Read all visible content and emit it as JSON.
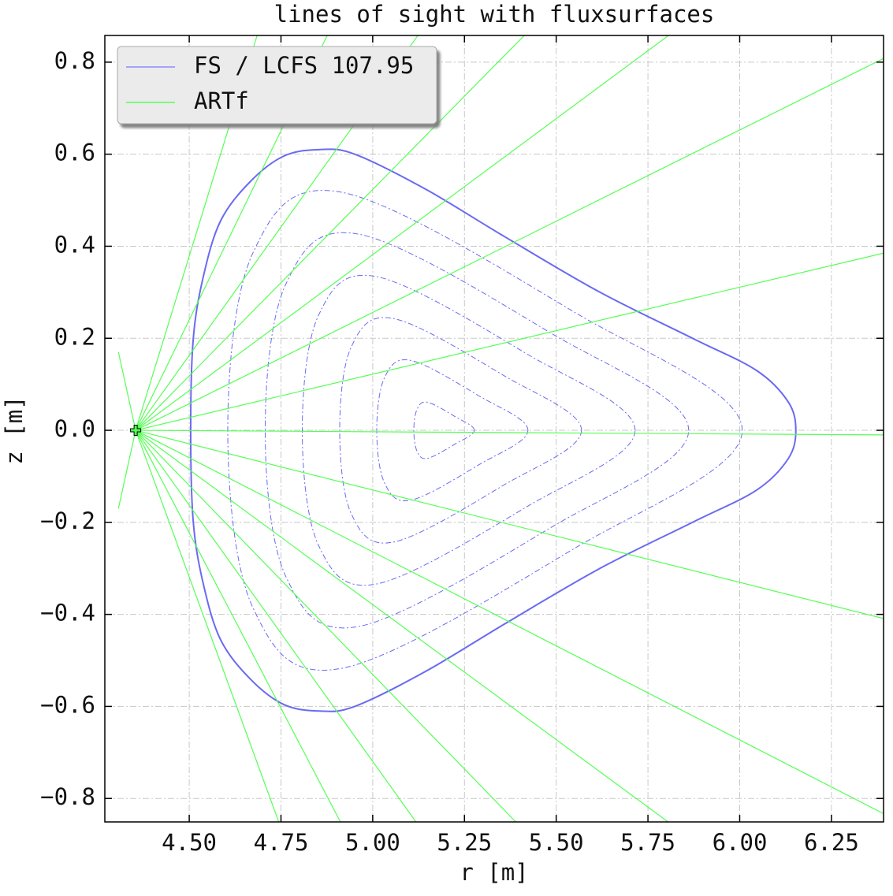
{
  "chart_data": {
    "type": "line",
    "title": "lines of sight with fluxsurfaces",
    "xlabel": "r [m]",
    "ylabel": "z [m]",
    "xlim": [
      4.27,
      6.392
    ],
    "ylim": [
      -0.851,
      0.858
    ],
    "xticks": [
      {
        "value": 4.5,
        "label": "4.50"
      },
      {
        "value": 4.75,
        "label": "4.75"
      },
      {
        "value": 5.0,
        "label": "5.00"
      },
      {
        "value": 5.25,
        "label": "5.25"
      },
      {
        "value": 5.5,
        "label": "5.50"
      },
      {
        "value": 5.75,
        "label": "5.75"
      },
      {
        "value": 6.0,
        "label": "6.00"
      },
      {
        "value": 6.25,
        "label": "6.25"
      }
    ],
    "yticks": [
      {
        "value": -0.8,
        "label": "−0.8"
      },
      {
        "value": -0.6,
        "label": "−0.6"
      },
      {
        "value": -0.4,
        "label": "−0.4"
      },
      {
        "value": -0.2,
        "label": "−0.2"
      },
      {
        "value": 0,
        "label": "0.0"
      },
      {
        "value": 0.2,
        "label": "0.2"
      },
      {
        "value": 0.4,
        "label": "0.4"
      },
      {
        "value": 0.6,
        "label": "0.6"
      },
      {
        "value": 0.8,
        "label": "0.8"
      }
    ],
    "grid": true,
    "legend": "upper left",
    "series": [
      {
        "name": "FS / LCFS 107.95",
        "color": "#6a6af2",
        "legend_color": "#8c8cff",
        "closed": true,
        "lines": [
          {
            "style": "solid",
            "x": [
              6.153,
              6.132,
              6.046,
              5.874,
              5.617,
              5.359,
              5.144,
              4.951,
              4.854,
              4.758,
              4.667,
              4.586,
              4.539,
              4.511,
              4.504,
              4.511,
              4.539,
              4.586,
              4.667,
              4.758,
              4.854,
              4.951,
              5.144,
              5.359,
              5.617,
              5.874,
              6.046,
              6.132
            ],
            "y": [
              0,
              0.062,
              0.13,
              0.199,
              0.301,
              0.421,
              0.524,
              0.6,
              0.61,
              0.596,
              0.541,
              0.456,
              0.336,
              0.199,
              0,
              -0.199,
              -0.336,
              -0.456,
              -0.541,
              -0.596,
              -0.61,
              -0.6,
              -0.524,
              -0.421,
              -0.301,
              -0.199,
              -0.13,
              -0.062
            ]
          },
          {
            "style": "dashdot",
            "x": [
              6.007,
              5.551,
              4.917,
              4.675,
              4.605,
              4.675,
              4.917,
              5.551
            ],
            "y": [
              0,
              0.256,
              0.517,
              0.388,
              0,
              -0.388,
              -0.517,
              -0.256
            ]
          },
          {
            "style": "dashdot",
            "x": [
              5.861,
              5.486,
              4.963,
              4.764,
              4.707,
              4.764,
              4.963,
              5.486
            ],
            "y": [
              0,
              0.211,
              0.426,
              0.319,
              0,
              -0.319,
              -0.426,
              -0.211
            ]
          },
          {
            "style": "dashdot",
            "x": [
              5.715,
              5.42,
              5.01,
              4.853,
              4.808,
              4.853,
              5.01,
              5.42
            ],
            "y": [
              0,
              0.166,
              0.334,
              0.251,
              0,
              -0.251,
              -0.334,
              -0.166
            ]
          },
          {
            "style": "dashdot",
            "x": [
              5.569,
              5.355,
              5.056,
              4.942,
              4.91,
              4.942,
              5.056,
              5.355
            ],
            "y": [
              0,
              0.12,
              0.243,
              0.182,
              0,
              -0.182,
              -0.243,
              -0.12
            ]
          },
          {
            "style": "dashdot",
            "x": [
              5.423,
              5.289,
              5.103,
              5.032,
              5.011,
              5.032,
              5.103,
              5.289
            ],
            "y": [
              0,
              0.075,
              0.152,
              0.114,
              0,
              -0.114,
              -0.152,
              -0.075
            ]
          },
          {
            "style": "dashdot",
            "x": [
              5.277,
              5.224,
              5.149,
              5.121,
              5.112,
              5.121,
              5.149,
              5.224
            ],
            "y": [
              0,
              0.03,
              0.061,
              0.046,
              0,
              -0.046,
              -0.061,
              -0.03
            ]
          }
        ]
      },
      {
        "name": "ARTf",
        "color": "#55ff55",
        "legend_color": "#55ff55",
        "closed": false,
        "marker": "+",
        "lines": [
          {
            "style": "solid",
            "x": [
              4.354,
              4.685
            ],
            "y": [
              0,
              0.858
            ]
          },
          {
            "style": "solid",
            "x": [
              4.354,
              4.876
            ],
            "y": [
              0,
              0.858
            ]
          },
          {
            "style": "solid",
            "x": [
              4.354,
              5.123
            ],
            "y": [
              0,
              0.858
            ]
          },
          {
            "style": "solid",
            "x": [
              4.354,
              5.413
            ],
            "y": [
              0,
              0.858
            ]
          },
          {
            "style": "solid",
            "x": [
              4.354,
              5.806
            ],
            "y": [
              0,
              0.858
            ]
          },
          {
            "style": "solid",
            "x": [
              4.354,
              6.392
            ],
            "y": [
              0,
              0.808
            ]
          },
          {
            "style": "solid",
            "x": [
              4.354,
              6.392
            ],
            "y": [
              0,
              0.385
            ]
          },
          {
            "style": "solid",
            "x": [
              4.354,
              6.392
            ],
            "y": [
              0,
              -0.01
            ]
          },
          {
            "style": "solid",
            "x": [
              4.354,
              6.392
            ],
            "y": [
              0,
              -0.409
            ]
          },
          {
            "style": "solid",
            "x": [
              4.354,
              6.392
            ],
            "y": [
              0,
              -0.833
            ]
          },
          {
            "style": "solid",
            "x": [
              4.354,
              5.805
            ],
            "y": [
              0,
              -0.851
            ]
          },
          {
            "style": "solid",
            "x": [
              4.354,
              5.39
            ],
            "y": [
              0,
              -0.851
            ]
          },
          {
            "style": "solid",
            "x": [
              4.354,
              5.118
            ],
            "y": [
              0,
              -0.851
            ]
          },
          {
            "style": "solid",
            "x": [
              4.354,
              4.912
            ],
            "y": [
              0,
              -0.851
            ]
          },
          {
            "style": "solid",
            "x": [
              4.354,
              4.744
            ],
            "y": [
              0,
              -0.851
            ]
          },
          {
            "style": "solid",
            "x": [
              4.307,
              4.354
            ],
            "y": [
              0.17,
              0
            ]
          },
          {
            "style": "solid",
            "x": [
              4.307,
              4.354
            ],
            "y": [
              -0.17,
              0
            ]
          }
        ]
      }
    ]
  }
}
